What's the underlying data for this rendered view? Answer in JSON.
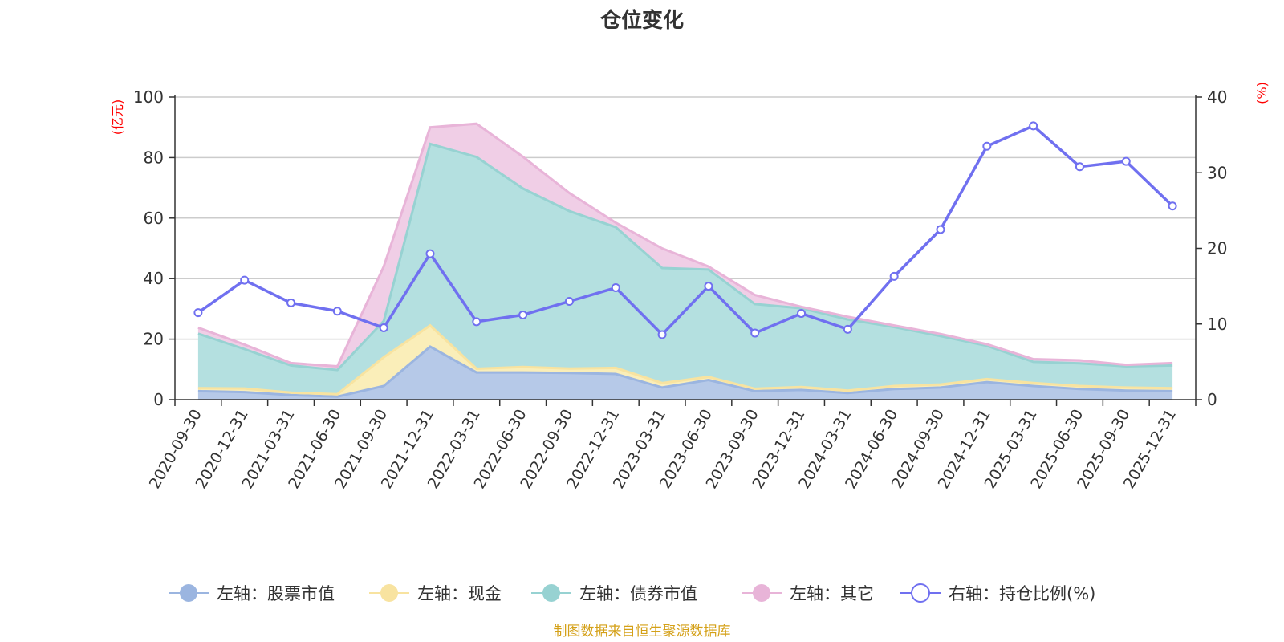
{
  "chart_data": {
    "type": "area",
    "title": "仓位变化",
    "left_unit": "(亿元)",
    "right_unit": "(%)",
    "left_ylim": [
      0,
      100
    ],
    "right_ylim": [
      0,
      40
    ],
    "left_ticks": [
      0,
      20,
      40,
      60,
      80,
      100
    ],
    "right_ticks": [
      0,
      10,
      20,
      30,
      40
    ],
    "categories": [
      "2020-09-30",
      "2020-12-31",
      "2021-03-31",
      "2021-06-30",
      "2021-09-30",
      "2021-12-31",
      "2022-03-31",
      "2022-06-30",
      "2022-09-30",
      "2022-12-31",
      "2023-03-31",
      "2023-06-30",
      "2023-09-30",
      "2023-12-31",
      "2024-03-31",
      "2024-06-30",
      "2024-09-30",
      "2024-12-31",
      "2025-03-31",
      "2025-06-30",
      "2025-09-30",
      "2025-12-31"
    ],
    "stack_order": [
      "股票市值",
      "现金",
      "债券市值",
      "其它"
    ],
    "series": [
      {
        "name": "左轴：股票市值",
        "key": "stock",
        "axis": "left",
        "color": "#9bb5e0",
        "fill": "#b6c9e8",
        "values": [
          2.8,
          2.5,
          1.5,
          1.0,
          4.5,
          17.5,
          9.0,
          9.0,
          8.8,
          8.5,
          4.0,
          6.5,
          2.8,
          3.2,
          2.2,
          3.5,
          4.0,
          5.8,
          4.5,
          3.5,
          3.0,
          2.8
        ]
      },
      {
        "name": "左轴：现金",
        "key": "cash",
        "axis": "left",
        "color": "#f8e3a0",
        "fill": "#faeeb9",
        "values": [
          1.0,
          1.2,
          0.8,
          0.8,
          9.5,
          7.0,
          1.2,
          1.8,
          1.5,
          2.0,
          1.5,
          1.0,
          0.8,
          1.0,
          0.8,
          1.0,
          1.0,
          1.0,
          1.0,
          1.0,
          1.0,
          1.0
        ]
      },
      {
        "name": "左轴：债券市值",
        "key": "bond",
        "axis": "left",
        "color": "#97d2d2",
        "fill": "#b4e0e0",
        "values": [
          18.0,
          13.0,
          9.0,
          8.0,
          12.0,
          60.0,
          70.0,
          59.0,
          52.0,
          46.5,
          38.0,
          35.5,
          28.0,
          26.0,
          23.5,
          19.5,
          16.0,
          11.0,
          7.0,
          7.5,
          7.0,
          7.5
        ]
      },
      {
        "name": "左轴：其它",
        "key": "other",
        "axis": "left",
        "color": "#e8b4d8",
        "fill": "#f0cee6",
        "values": [
          2.0,
          1.5,
          0.8,
          1.2,
          18.0,
          5.5,
          11.0,
          10.5,
          6.0,
          1.5,
          6.5,
          1.0,
          3.0,
          0.5,
          0.9,
          0.5,
          0.7,
          0.5,
          0.9,
          1.0,
          0.5,
          0.8
        ]
      },
      {
        "name": "右轴：持仓比例(%)",
        "key": "ratio",
        "axis": "right",
        "color": "#7070f0",
        "values": [
          11.5,
          15.8,
          12.8,
          11.7,
          9.5,
          19.3,
          10.3,
          11.2,
          13.0,
          14.8,
          8.6,
          15.0,
          8.8,
          11.4,
          9.3,
          16.3,
          22.5,
          33.5,
          36.2,
          30.8,
          31.5,
          25.6
        ]
      }
    ]
  },
  "footer": {
    "source": "制图数据来自恒生聚源数据库"
  }
}
